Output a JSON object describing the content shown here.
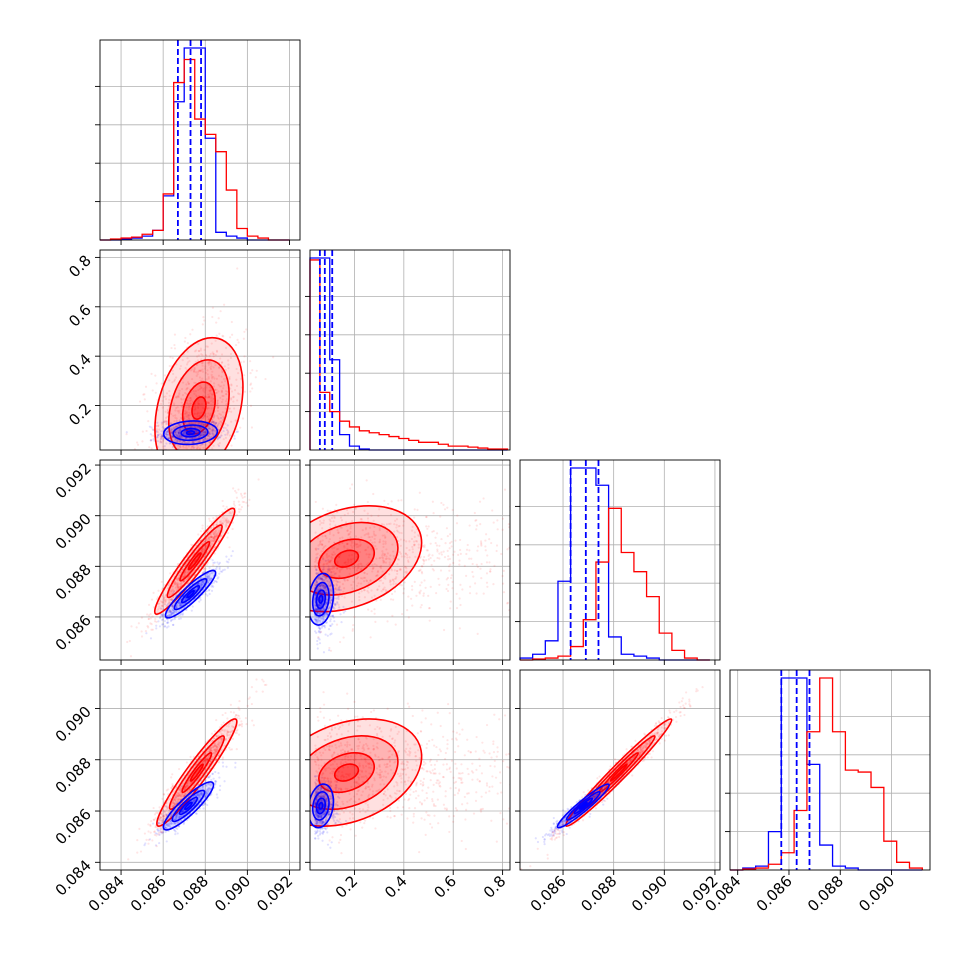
{
  "chart_data": {
    "type": "corner",
    "grid": true,
    "series_colors": {
      "blue": "#0000ff",
      "red": "#ff0000"
    },
    "params": [
      {
        "id": "p1",
        "range": [
          0.083,
          0.0925
        ],
        "ticks": [
          0.084,
          0.086,
          0.088,
          0.09,
          0.092
        ],
        "tick_labels": [
          "0.084",
          "0.086",
          "0.088",
          "0.090",
          "0.092"
        ]
      },
      {
        "id": "p2",
        "range": [
          0.02,
          0.83
        ],
        "ticks": [
          0.2,
          0.4,
          0.6,
          0.8
        ],
        "tick_labels": [
          "0.2",
          "0.4",
          "0.6",
          "0.8"
        ]
      },
      {
        "id": "p3",
        "range": [
          0.0843,
          0.0922
        ],
        "ticks": [
          0.086,
          0.088,
          0.09,
          0.092
        ],
        "tick_labels": [
          "0.086",
          "0.088",
          "0.090",
          "0.092"
        ]
      },
      {
        "id": "p4",
        "range": [
          0.0837,
          0.0915
        ],
        "ticks": [
          0.084,
          0.086,
          0.088,
          0.09
        ],
        "tick_labels": [
          "0.084",
          "0.086",
          "0.088",
          "0.090"
        ]
      }
    ],
    "quantiles_blue": [
      [
        0.0867,
        0.0873,
        0.0878
      ],
      [
        0.06,
        0.08,
        0.11
      ],
      [
        0.0863,
        0.0869,
        0.0874
      ],
      [
        0.0857,
        0.0863,
        0.0868
      ]
    ],
    "histograms": [
      {
        "param": 0,
        "edges": [
          0.083,
          0.0835,
          0.084,
          0.0845,
          0.085,
          0.0855,
          0.086,
          0.0865,
          0.087,
          0.0875,
          0.088,
          0.0885,
          0.089,
          0.0895,
          0.09,
          0.0905,
          0.091,
          0.0915,
          0.092
        ],
        "blue": [
          0,
          0,
          0.005,
          0.01,
          0.02,
          0.05,
          0.23,
          0.72,
          1.0,
          1.0,
          0.53,
          0.04,
          0.02,
          0.01,
          0,
          0,
          0,
          0
        ],
        "red": [
          0,
          0.005,
          0.01,
          0.015,
          0.03,
          0.05,
          0.24,
          0.82,
          0.94,
          0.63,
          0.55,
          0.46,
          0.26,
          0.06,
          0.02,
          0.01,
          0,
          0
        ]
      },
      {
        "param": 1,
        "edges": [
          0.02,
          0.06,
          0.1,
          0.14,
          0.18,
          0.22,
          0.26,
          0.3,
          0.34,
          0.38,
          0.42,
          0.46,
          0.5,
          0.54,
          0.58,
          0.62,
          0.66,
          0.7,
          0.74,
          0.78,
          0.82
        ],
        "blue": [
          1.0,
          1.0,
          0.47,
          0.08,
          0.02,
          0.005,
          0,
          0,
          0,
          0,
          0,
          0,
          0,
          0,
          0,
          0,
          0,
          0,
          0,
          0
        ],
        "red": [
          0.99,
          0.3,
          0.2,
          0.15,
          0.12,
          0.1,
          0.09,
          0.08,
          0.07,
          0.06,
          0.05,
          0.04,
          0.04,
          0.03,
          0.02,
          0.02,
          0.015,
          0.01,
          0.005,
          0.005
        ]
      },
      {
        "param": 2,
        "edges": [
          0.0843,
          0.0848,
          0.0853,
          0.0858,
          0.0863,
          0.0868,
          0.0873,
          0.0878,
          0.0883,
          0.0888,
          0.0893,
          0.0898,
          0.0903,
          0.0908,
          0.0913,
          0.0918
        ],
        "blue": [
          0.01,
          0.03,
          0.1,
          0.41,
          1.0,
          1.0,
          0.91,
          0.12,
          0.03,
          0.02,
          0.01,
          0,
          0,
          0,
          0
        ],
        "red": [
          0,
          0.005,
          0.01,
          0.02,
          0.07,
          0.21,
          0.51,
          0.79,
          0.56,
          0.46,
          0.33,
          0.14,
          0.05,
          0.01,
          0
        ]
      },
      {
        "param": 3,
        "edges": [
          0.0837,
          0.0842,
          0.0847,
          0.0852,
          0.0857,
          0.0862,
          0.0867,
          0.0872,
          0.0877,
          0.0882,
          0.0887,
          0.0892,
          0.0897,
          0.0902,
          0.0907,
          0.0912
        ],
        "blue": [
          0,
          0.01,
          0.02,
          0.2,
          1.0,
          1.0,
          0.55,
          0.13,
          0.02,
          0.01,
          0,
          0,
          0,
          0,
          0
        ],
        "red": [
          0,
          0.005,
          0.01,
          0.03,
          0.09,
          0.31,
          0.72,
          1.0,
          0.72,
          0.52,
          0.51,
          0.43,
          0.15,
          0.04,
          0.01
        ]
      }
    ],
    "panels_2d": [
      {
        "x_param": 0,
        "y_param": 1,
        "blue": {
          "cx": 0.0873,
          "cy": 0.09,
          "sx": 0.00075,
          "sy": 0.028,
          "rho": 0.1
        },
        "red": {
          "cx": 0.0877,
          "cy": 0.19,
          "sx": 0.0011,
          "sy": 0.15,
          "rho": 0.3
        }
      },
      {
        "x_param": 0,
        "y_param": 2,
        "blue": {
          "cx": 0.0873,
          "cy": 0.0869,
          "sx": 0.0007,
          "sy": 0.00055,
          "rho": 0.9
        },
        "red": {
          "cx": 0.0875,
          "cy": 0.0882,
          "sx": 0.001,
          "sy": 0.0011,
          "rho": 0.95
        }
      },
      {
        "x_param": 1,
        "y_param": 2,
        "blue": {
          "cx": 0.08,
          "cy": 0.0867,
          "sx": 0.03,
          "sy": 0.0006,
          "rho": 0.2
        },
        "red": {
          "cx": 0.23,
          "cy": 0.0883,
          "sx": 0.16,
          "sy": 0.0011,
          "rho": 0.3
        }
      },
      {
        "x_param": 0,
        "y_param": 3,
        "blue": {
          "cx": 0.0872,
          "cy": 0.0862,
          "sx": 0.0007,
          "sy": 0.00055,
          "rho": 0.88
        },
        "red": {
          "cx": 0.0876,
          "cy": 0.0875,
          "sx": 0.001,
          "sy": 0.0011,
          "rho": 0.95
        }
      },
      {
        "x_param": 1,
        "y_param": 3,
        "blue": {
          "cx": 0.08,
          "cy": 0.0862,
          "sx": 0.03,
          "sy": 0.0005,
          "rho": 0.2
        },
        "red": {
          "cx": 0.23,
          "cy": 0.0875,
          "sx": 0.16,
          "sy": 0.0011,
          "rho": 0.3
        }
      },
      {
        "x_param": 2,
        "y_param": 3,
        "blue": {
          "cx": 0.0868,
          "cy": 0.0862,
          "sx": 0.0006,
          "sy": 0.0005,
          "rho": 0.95
        },
        "red": {
          "cx": 0.0882,
          "cy": 0.0875,
          "sx": 0.0011,
          "sy": 0.0011,
          "rho": 0.98
        }
      }
    ]
  }
}
